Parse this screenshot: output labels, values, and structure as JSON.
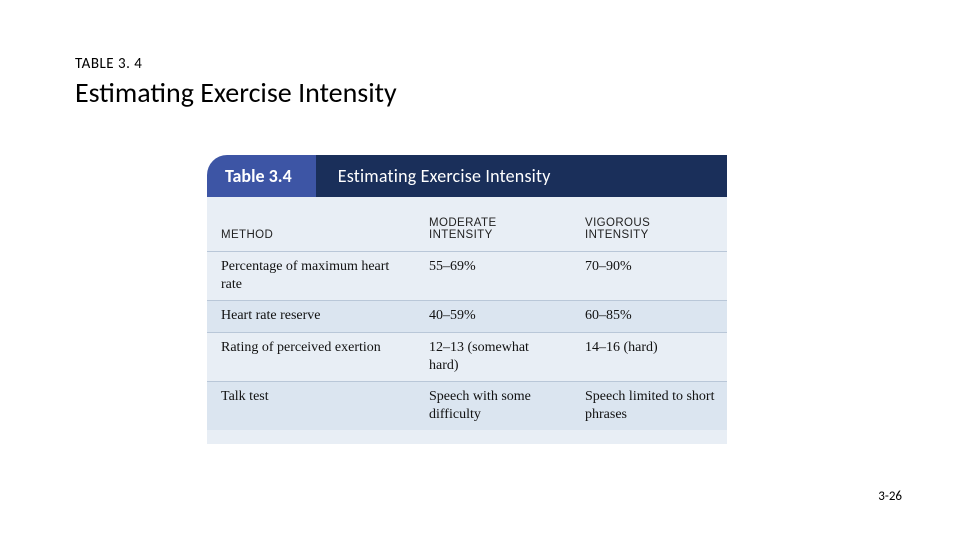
{
  "header": {
    "label": "TABLE 3. 4",
    "title": "Estimating Exercise Intensity"
  },
  "figure": {
    "banner": {
      "left_text": "Table 3.4",
      "right_text": "Estimating Exercise Intensity",
      "left_bg": "#3d55a5",
      "right_bg": "#1a2f5a",
      "text_color": "#ffffff"
    },
    "table": {
      "type": "table",
      "body_bg": "#e8eef5",
      "row_alt_bg": "#dbe5f0",
      "row_border": "#b9c7d8",
      "columns": [
        {
          "key": "method",
          "header": "METHOD",
          "class": "col-method"
        },
        {
          "key": "moderate",
          "header": "MODERATE INTENSITY",
          "class": "col-mod"
        },
        {
          "key": "vigorous",
          "header": "VIGOROUS INTENSITY",
          "class": "col-vig"
        }
      ],
      "rows": [
        {
          "method": "Percentage of maximum heart rate",
          "moderate": "55–69%",
          "vigorous": "70–90%"
        },
        {
          "method": "Heart rate reserve",
          "moderate": "40–59%",
          "vigorous": "60–85%"
        },
        {
          "method": "Rating of perceived exertion",
          "moderate": "12–13 (somewhat hard)",
          "vigorous": "14–16 (hard)"
        },
        {
          "method": "Talk test",
          "moderate": "Speech with some difficulty",
          "vigorous": "Speech limited to short phrases"
        }
      ]
    }
  },
  "footer": {
    "page": "3-26"
  }
}
